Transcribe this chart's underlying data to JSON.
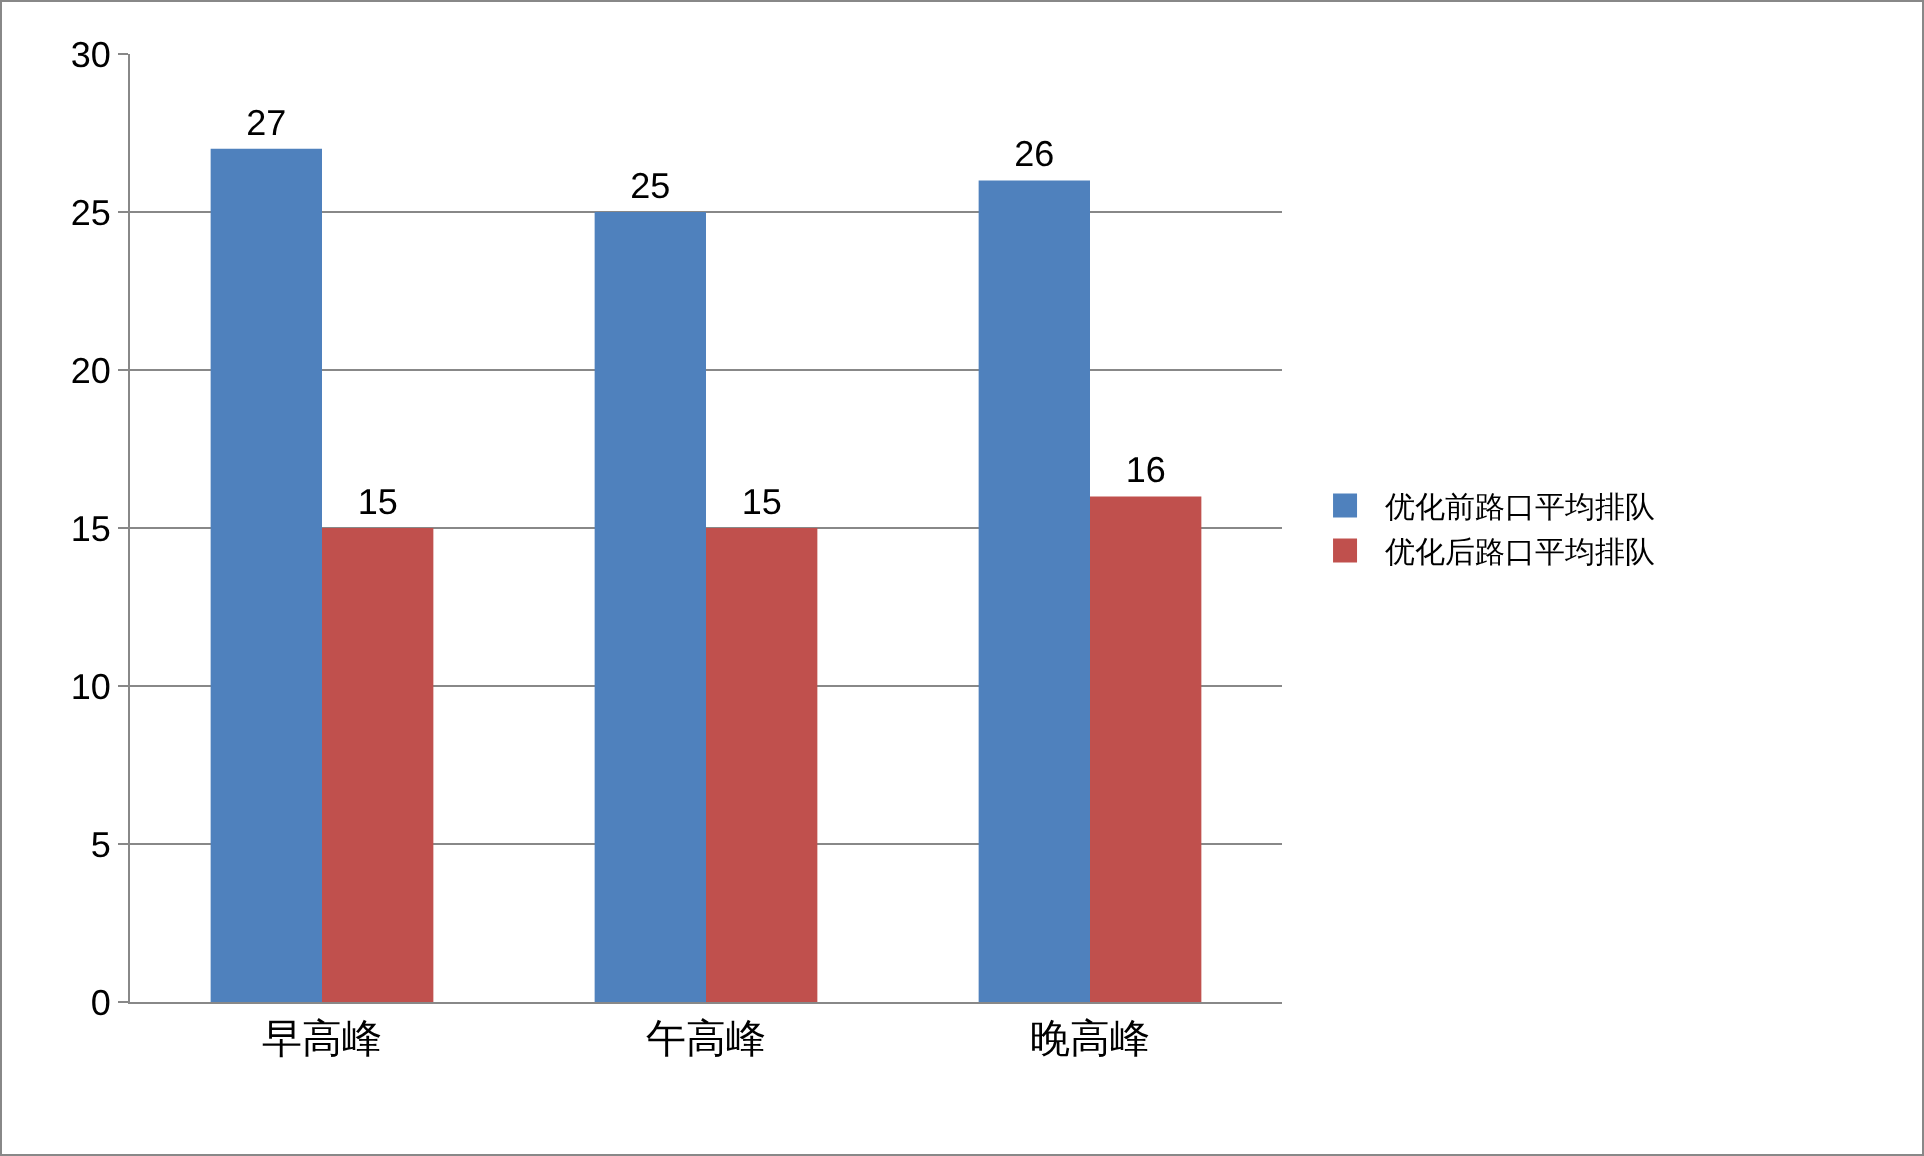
{
  "chart_data": {
    "type": "bar",
    "categories": [
      "早高峰",
      "午高峰",
      "晚高峰"
    ],
    "series": [
      {
        "name": "优化前路口平均排队",
        "color": "#4f81bd",
        "values": [
          27,
          25,
          26
        ]
      },
      {
        "name": "优化后路口平均排队",
        "color": "#c0504d",
        "values": [
          15,
          15,
          16
        ]
      }
    ],
    "ylim": [
      0,
      30
    ],
    "yticks": [
      0,
      5,
      10,
      15,
      20,
      25,
      30
    ],
    "grid": "y",
    "legend": "right",
    "data_labels": true
  }
}
